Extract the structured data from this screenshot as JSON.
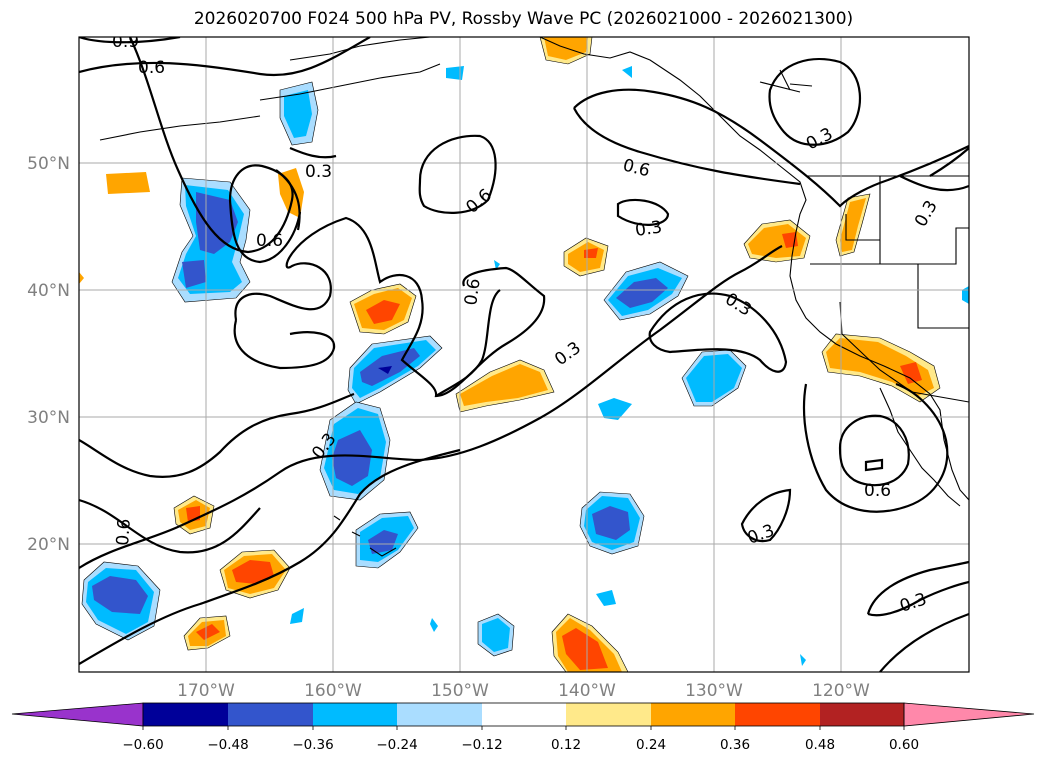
{
  "title": "2026020700 F024 500 hPa PV, Rossby Wave PC (2026021000 - 2026021300)",
  "lat_labels": [
    "50°N",
    "40°N",
    "30°N",
    "20°N"
  ],
  "lon_labels": [
    "170°W",
    "160°W",
    "150°W",
    "140°W",
    "130°W",
    "120°W"
  ],
  "contour_labels": [
    "0.6",
    "0.9",
    "0.3",
    "0.6",
    "0.6",
    "0.6",
    "0.3",
    "0.3",
    "0.6",
    "0.3",
    "0.3",
    "0.3",
    "0.6",
    "0.3",
    "0.3",
    "0.6",
    "0.3"
  ],
  "colorbar": {
    "ticks": [
      "−0.60",
      "−0.48",
      "−0.36",
      "−0.24",
      "−0.12",
      "0.12",
      "0.24",
      "0.36",
      "0.48",
      "0.60"
    ],
    "colors": [
      "#9933cc",
      "#000099",
      "#3355cc",
      "#00bbff",
      "#aaddff",
      "#ffffff",
      "#ffe98a",
      "#ffa500",
      "#ff4500",
      "#b22222",
      "#ff88aa"
    ]
  },
  "colors": {
    "negative": [
      "#aaddff",
      "#00bbff",
      "#3355cc",
      "#000099"
    ],
    "positive": [
      "#ffe98a",
      "#ffa500",
      "#ff4500"
    ],
    "contour": "#000000",
    "grid": "#aaaaaa",
    "coast": "#000000"
  }
}
